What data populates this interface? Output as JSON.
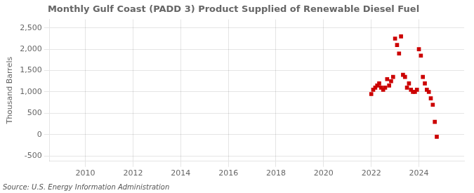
{
  "chart_data": {
    "type": "scatter",
    "title": "Monthly Gulf Coast (PADD 3) Product Supplied of Renewable Diesel Fuel",
    "y_label": "Thousand Barrels",
    "source": "Source: U.S. Energy Information Administration",
    "color": "#cc0000",
    "marker": "square",
    "grid": true,
    "xlim": [
      2008.5,
      2025.9
    ],
    "xticks": [
      2010,
      2012,
      2014,
      2016,
      2018,
      2020,
      2022,
      2024
    ],
    "ylim": [
      -625,
      2700
    ],
    "yticks": [
      {
        "value": -500,
        "label": "-500"
      },
      0,
      500,
      {
        "value": 1000,
        "label": "1,000"
      },
      {
        "value": 1500,
        "label": "1,500"
      },
      {
        "value": 2000,
        "label": "2,000"
      },
      {
        "value": 2500,
        "label": "2,500"
      }
    ],
    "x": [
      2022.0,
      2022.083,
      2022.167,
      2022.25,
      2022.333,
      2022.417,
      2022.5,
      2022.583,
      2022.667,
      2022.75,
      2022.833,
      2022.917,
      2023.0,
      2023.083,
      2023.167,
      2023.25,
      2023.333,
      2023.417,
      2023.5,
      2023.583,
      2023.667,
      2023.75,
      2023.833,
      2023.917,
      2024.0,
      2024.083,
      2024.167,
      2024.25,
      2024.333,
      2024.417,
      2024.5,
      2024.583,
      2024.667,
      2024.75
    ],
    "values": [
      950,
      1050,
      1100,
      1150,
      1200,
      1100,
      1050,
      1100,
      1300,
      1150,
      1250,
      1350,
      2250,
      2100,
      1900,
      2300,
      1400,
      1350,
      1100,
      1200,
      1050,
      1000,
      1000,
      1050,
      2000,
      1850,
      1350,
      1200,
      1050,
      1000,
      850,
      700,
      300,
      -50
    ]
  }
}
